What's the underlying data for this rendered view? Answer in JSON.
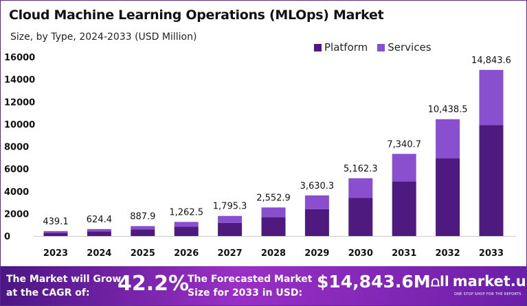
{
  "chart_data": {
    "type": "bar",
    "stacked": true,
    "title": "Cloud Machine Learning Operations (MLOps) Market",
    "subtitle": "Size, by Type, 2024-2033 (USD Million)",
    "categories": [
      "2023",
      "2024",
      "2025",
      "2026",
      "2027",
      "2028",
      "2029",
      "2030",
      "2031",
      "2032",
      "2033"
    ],
    "totals": [
      "439.1",
      "624.4",
      "887.9",
      "1,262.5",
      "1,795.3",
      "2,552.9",
      "3,630.3",
      "5,162.3",
      "7,340.7",
      "10,438.5",
      "14,843.6"
    ],
    "total_values": [
      439.1,
      624.4,
      887.9,
      1262.5,
      1795.3,
      2552.9,
      3630.3,
      5162.3,
      7340.7,
      10438.5,
      14843.6
    ],
    "series": [
      {
        "name": "Platform",
        "color": "#4e1a7f",
        "values": [
          290,
          415,
          590,
          830,
          1180,
          1680,
          2400,
          3400,
          4870,
          6950,
          9900
        ]
      },
      {
        "name": "Services",
        "color": "#8a4fcf",
        "values": [
          149.1,
          209.4,
          297.9,
          432.5,
          615.3,
          872.9,
          1230.3,
          1762.3,
          2470.7,
          3488.5,
          4943.6
        ]
      }
    ],
    "yticks": [
      "0",
      "2000",
      "4000",
      "6000",
      "8000",
      "10000",
      "12000",
      "14000",
      "16000"
    ],
    "ylim": [
      0,
      16000
    ],
    "grid": false,
    "legend": "top-right"
  },
  "footer": {
    "cagr_text_1": "The Market will Grow",
    "cagr_text_2": "at the CAGR of:",
    "cagr": "42.2%",
    "forecast_text_1": "The Forecasted Market",
    "forecast_text_2": "Size for 2033 in USD:",
    "forecast": "$14,843.6M",
    "logo": "market.us",
    "tagline": "ONE STOP SHOP FOR THE REPORTS"
  }
}
